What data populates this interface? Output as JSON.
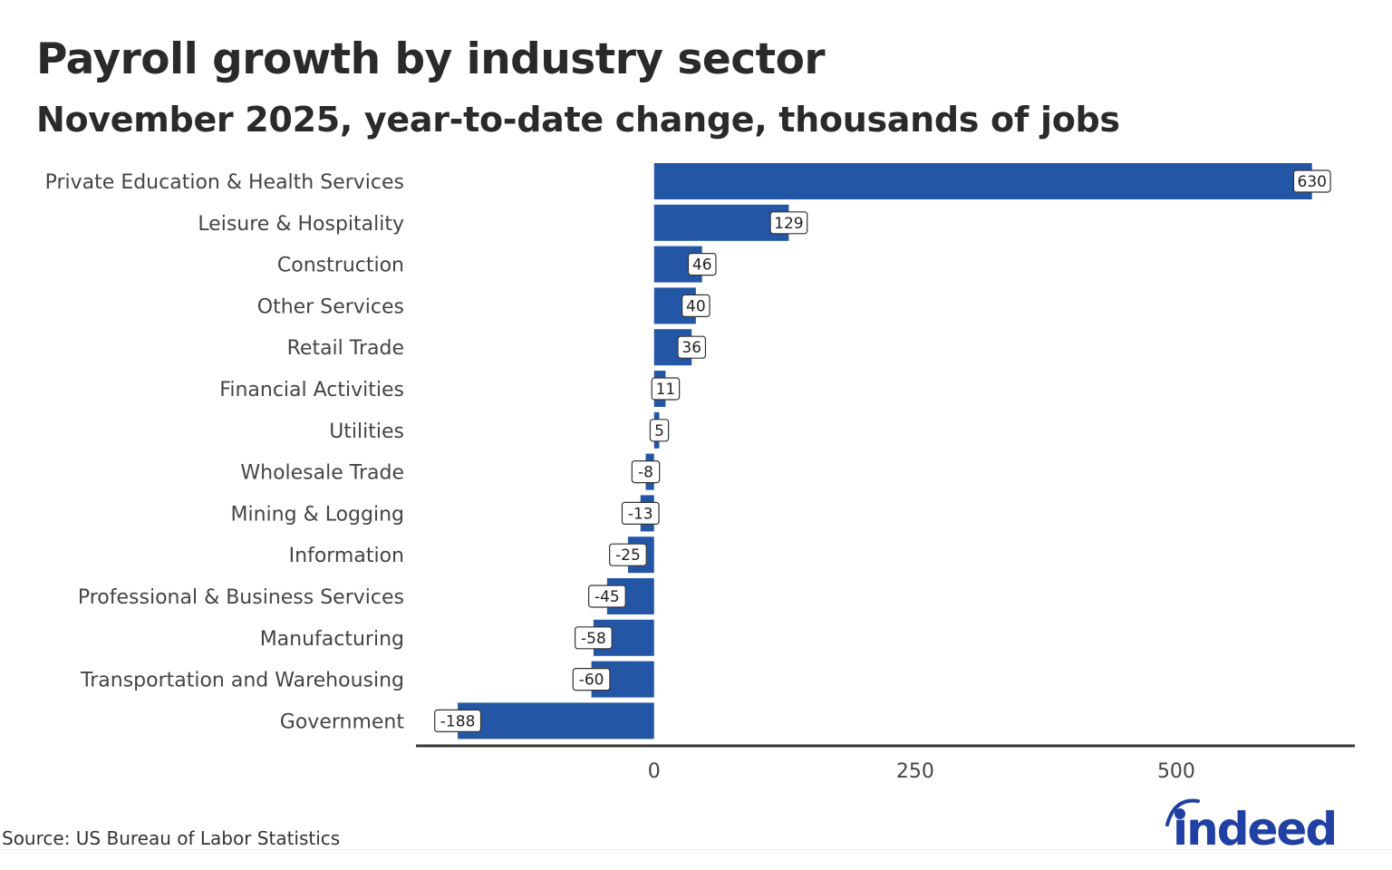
{
  "header": {
    "title": "Payroll growth by industry sector",
    "subtitle": "November 2025, year-to-date change, thousands of jobs"
  },
  "footer": {
    "source": "Source: US Bureau of Labor Statistics",
    "logo_text": "indeed"
  },
  "colors": {
    "bar": "#2456a6",
    "logo": "#2041a3",
    "text": "#444444"
  },
  "chart_data": {
    "type": "bar",
    "orientation": "horizontal",
    "title": "Payroll growth by industry sector",
    "subtitle": "November 2025, year-to-date change, thousands of jobs",
    "xlabel": "",
    "ylabel": "",
    "categories": [
      "Private Education & Health Services",
      "Leisure & Hospitality",
      "Construction",
      "Other Services",
      "Retail Trade",
      "Financial Activities",
      "Utilities",
      "Wholesale Trade",
      "Mining & Logging",
      "Information",
      "Professional & Business Services",
      "Manufacturing",
      "Transportation and Warehousing",
      "Government"
    ],
    "values": [
      630,
      129,
      46,
      40,
      36,
      11,
      5,
      -8,
      -13,
      -25,
      -45,
      -58,
      -60,
      -188
    ],
    "data_labels": [
      "630",
      "129",
      "46",
      "40",
      "36",
      "11",
      "5",
      "-8",
      "-13",
      "-25",
      "-45",
      "-58",
      "-60",
      "-188"
    ],
    "xlim": [
      -228,
      671
    ],
    "xticks": [
      0,
      250,
      500
    ],
    "xtick_labels": [
      "0",
      "250",
      "500"
    ],
    "grid": false,
    "legend": "none",
    "source": "Source: US Bureau of Labor Statistics"
  }
}
